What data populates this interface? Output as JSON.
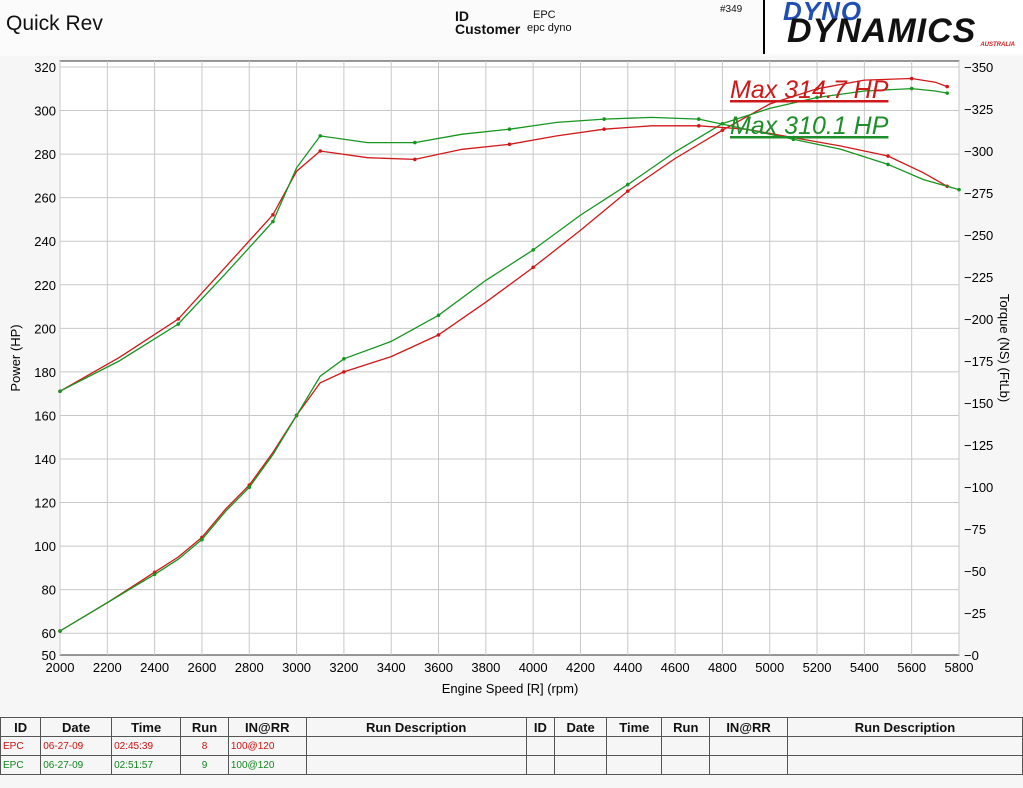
{
  "header": {
    "title": "Quick Rev",
    "id_label": "ID",
    "customer_label": "Customer",
    "id_value": "EPC",
    "customer_value": "epc dyno",
    "sheet_number": "#349"
  },
  "logo": {
    "line1": "DYNO",
    "line2": "DYNAMICS",
    "line3": "AUSTRALIA"
  },
  "chart_data": {
    "type": "line",
    "xlabel": "Engine Speed [R] (rpm)",
    "ylabel": "Power (HP)",
    "y2label": "Torque (NS) (FtLb)",
    "xlim": [
      2000,
      5800
    ],
    "ylim": [
      50,
      320
    ],
    "y2lim": [
      0,
      350
    ],
    "x_ticks": [
      2000,
      2200,
      2400,
      2600,
      2800,
      3000,
      3200,
      3400,
      3600,
      3800,
      4000,
      4200,
      4400,
      4600,
      4800,
      5000,
      5200,
      5400,
      5600,
      5800
    ],
    "y_ticks": [
      50,
      60,
      80,
      100,
      120,
      140,
      160,
      180,
      200,
      220,
      240,
      260,
      280,
      300,
      320
    ],
    "y2_ticks": [
      0,
      25,
      50,
      75,
      100,
      125,
      150,
      175,
      200,
      225,
      250,
      275,
      300,
      325,
      350
    ],
    "grid": true,
    "annotations": [
      {
        "text": "Max 314.7 HP",
        "color": "#cc1a1a"
      },
      {
        "text": "Max 310.1 HP",
        "color": "#1e8e2a"
      }
    ],
    "series": [
      {
        "run": 8,
        "measure": "power",
        "color": "#d01818",
        "x": [
          2000,
          2200,
          2400,
          2500,
          2600,
          2700,
          2800,
          2900,
          3000,
          3100,
          3200,
          3400,
          3600,
          3800,
          4000,
          4200,
          4400,
          4600,
          4800,
          5000,
          5200,
          5400,
          5600,
          5700,
          5750
        ],
        "y": [
          61,
          74,
          88,
          95,
          104,
          117,
          128,
          143,
          160,
          175,
          180,
          187,
          197,
          212,
          228,
          245,
          263,
          278,
          291,
          303,
          310,
          314,
          314.7,
          313,
          311
        ]
      },
      {
        "run": 9,
        "measure": "power",
        "color": "#16961f",
        "x": [
          2000,
          2200,
          2400,
          2500,
          2600,
          2700,
          2800,
          2900,
          3000,
          3100,
          3200,
          3400,
          3600,
          3800,
          4000,
          4200,
          4400,
          4600,
          4800,
          5000,
          5200,
          5400,
          5600,
          5700,
          5750
        ],
        "y": [
          61,
          74,
          87,
          94,
          103,
          116,
          127,
          142,
          160,
          178,
          186,
          194,
          206,
          222,
          236,
          252,
          266,
          281,
          294,
          301,
          306,
          309,
          310.1,
          309,
          308
        ]
      },
      {
        "run": 8,
        "measure": "torque",
        "color": "#d01818",
        "x": [
          2000,
          2250,
          2500,
          2700,
          2900,
          3000,
          3100,
          3300,
          3500,
          3700,
          3900,
          4100,
          4300,
          4500,
          4700,
          4900,
          5100,
          5300,
          5500,
          5650,
          5750
        ],
        "y": [
          157,
          177,
          200,
          231,
          262,
          288,
          300,
          296,
          295,
          301,
          304,
          309,
          313,
          315,
          315,
          313,
          308,
          303,
          297,
          287,
          279
        ]
      },
      {
        "run": 9,
        "measure": "torque",
        "color": "#16961f",
        "x": [
          2000,
          2250,
          2500,
          2700,
          2900,
          3000,
          3100,
          3300,
          3500,
          3700,
          3900,
          4100,
          4300,
          4500,
          4700,
          4900,
          5100,
          5300,
          5500,
          5650,
          5800
        ],
        "y": [
          157,
          175,
          197,
          227,
          258,
          290,
          309,
          305,
          305,
          310,
          313,
          317,
          319,
          320,
          319,
          313,
          307,
          301,
          292,
          283,
          277
        ]
      }
    ]
  },
  "run_table": {
    "columns": [
      "ID",
      "Date",
      "Time",
      "Run",
      "IN@RR",
      "Run Description",
      "ID",
      "Date",
      "Time",
      "Run",
      "IN@RR",
      "Run Description"
    ],
    "rows": [
      {
        "id": "EPC",
        "date": "06-27-09",
        "time": "02:45:39",
        "run": "8",
        "inrr": "100@120",
        "color": "#d01010"
      },
      {
        "id": "EPC",
        "date": "06-27-09",
        "time": "02:51:57",
        "run": "9",
        "inrr": "100@120",
        "color": "#12861e"
      }
    ]
  }
}
